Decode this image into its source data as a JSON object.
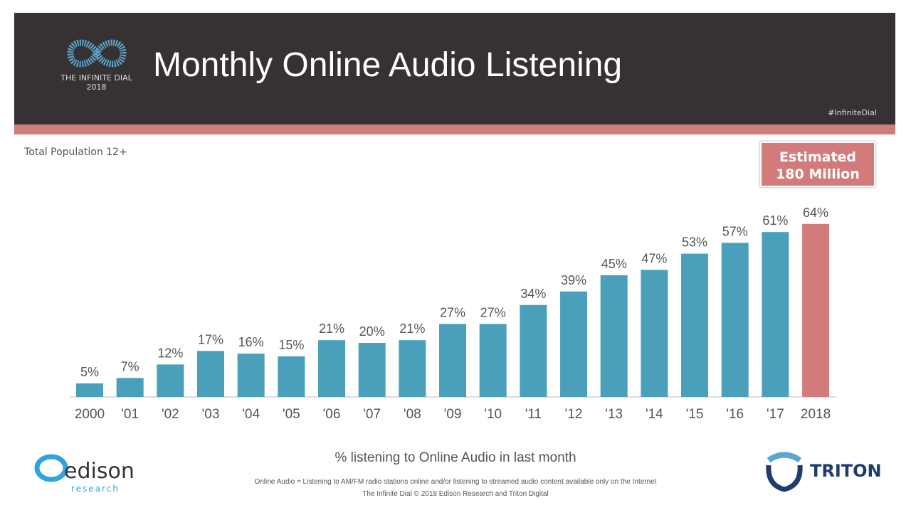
{
  "header": {
    "title": "Monthly Online Audio Listening",
    "logo_line1": "THE INFINITE DIAL",
    "logo_line2": "2018",
    "hashtag": "#InfiniteDial"
  },
  "subtitle": "Total Population 12+",
  "estimate": {
    "line1": "Estimated",
    "line2": "180 Million"
  },
  "footer": {
    "caption": "% listening to Online Audio in last month",
    "definition": "Online Audio = Listening to AM/FM radio stations online and/or listening to streamed audio content available only on the Internet",
    "copyright": "The Infinite Dial   © 2018 Edison Research and Triton Digital",
    "edison_name": "edison",
    "edison_sub": "research",
    "triton_name": "TRITON"
  },
  "colors": {
    "bar": "#4a9fbb",
    "highlight": "#d37a7a",
    "header": "#363132",
    "accent": "#cf7d7b"
  },
  "chart_data": {
    "type": "bar",
    "categories": [
      "2000",
      "'01",
      "'02",
      "'03",
      "'04",
      "'05",
      "'06",
      "'07",
      "'08",
      "'09",
      "'10",
      "'11",
      "'12",
      "'13",
      "'14",
      "'15",
      "'16",
      "'17",
      "2018"
    ],
    "values": [
      5,
      7,
      12,
      17,
      16,
      15,
      21,
      20,
      21,
      27,
      27,
      34,
      39,
      45,
      47,
      53,
      57,
      61,
      64
    ],
    "data_labels": [
      "5%",
      "7%",
      "12%",
      "17%",
      "16%",
      "15%",
      "21%",
      "20%",
      "21%",
      "27%",
      "27%",
      "34%",
      "39%",
      "45%",
      "47%",
      "53%",
      "57%",
      "61%",
      "64%"
    ],
    "highlight_index": 18,
    "unit": "%",
    "ylim": [
      0,
      64
    ],
    "grid": false,
    "legend": "none"
  }
}
